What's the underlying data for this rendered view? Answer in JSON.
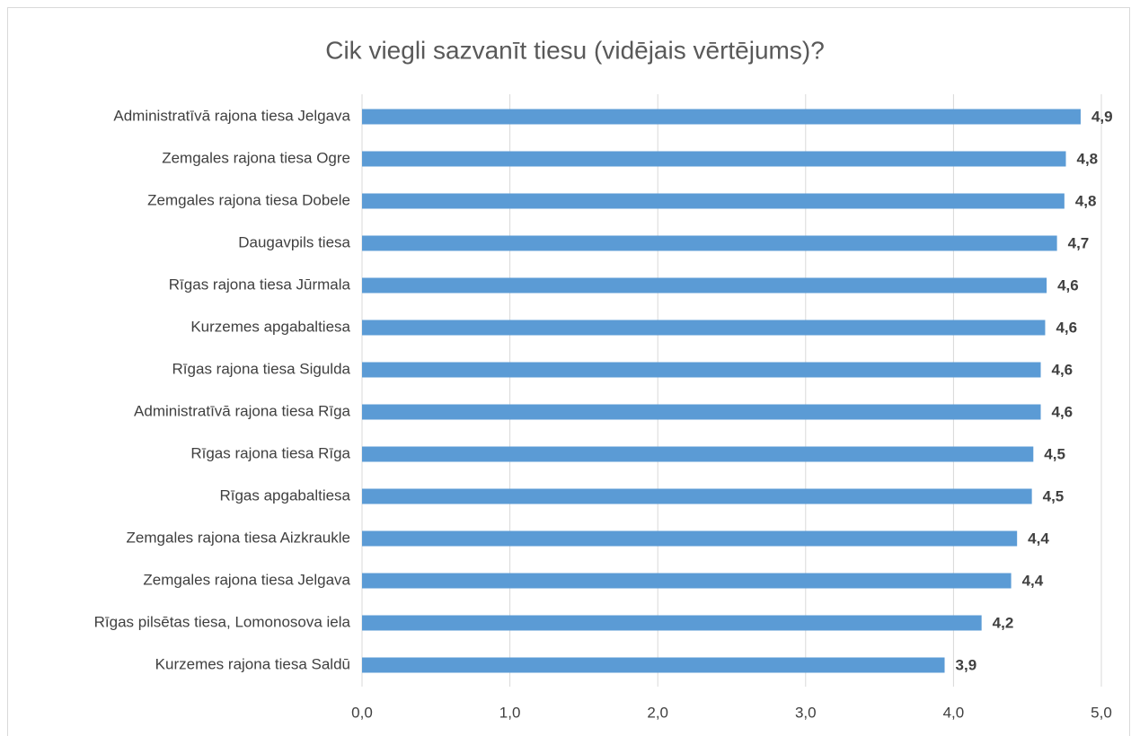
{
  "chart_data": {
    "type": "barh",
    "title": "Cik viegli sazvanīt tiesu (vidējais vērtējums)?",
    "categories": [
      "Administratīvā rajona tiesa Jelgava",
      "Zemgales rajona tiesa Ogre",
      "Zemgales rajona tiesa Dobele",
      "Daugavpils tiesa",
      "Rīgas rajona tiesa Jūrmala",
      "Kurzemes  apgabaltiesa",
      "Rīgas rajona tiesa Sigulda",
      "Administratīvā rajona tiesa Rīga",
      "Rīgas rajona tiesa Rīga",
      "Rīgas apgabaltiesa",
      "Zemgales rajona tiesa Aizkraukle",
      "Zemgales rajona tiesa Jelgava",
      "Rīgas pilsētas tiesa, Lomonosova iela",
      "Kurzemes rajona tiesa Saldū"
    ],
    "values": [
      4.86,
      4.76,
      4.75,
      4.7,
      4.63,
      4.62,
      4.59,
      4.59,
      4.54,
      4.53,
      4.43,
      4.39,
      4.19,
      3.94
    ],
    "value_labels": [
      "4,9",
      "4,8",
      "4,8",
      "4,7",
      "4,6",
      "4,6",
      "4,6",
      "4,6",
      "4,5",
      "4,5",
      "4,4",
      "4,4",
      "4,2",
      "3,9"
    ],
    "color": "#5b9bd5",
    "xlim": [
      0,
      5
    ],
    "xticks": [
      {
        "value": 0,
        "label": "0,0"
      },
      {
        "value": 1,
        "label": "1,0"
      },
      {
        "value": 2,
        "label": "2,0"
      },
      {
        "value": 3,
        "label": "3,0"
      },
      {
        "value": 4,
        "label": "4,0"
      },
      {
        "value": 5,
        "label": "5,0"
      }
    ],
    "grid": true
  }
}
